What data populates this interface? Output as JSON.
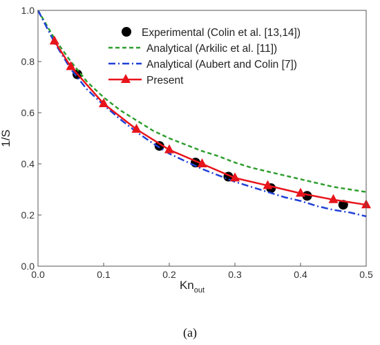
{
  "chart_data": {
    "type": "line",
    "ylabel": "1/S",
    "xlabel": "Kn",
    "xlabel_subscript": "out",
    "caption": "(a)",
    "xlim": [
      0,
      0.5
    ],
    "ylim": [
      0,
      1.0
    ],
    "x_ticks": [
      "0.0",
      "0.1",
      "0.2",
      "0.3",
      "0.4",
      "0.5"
    ],
    "y_ticks": [
      "0.0",
      "0.2",
      "0.4",
      "0.6",
      "0.8",
      "1.0"
    ],
    "grid": false,
    "legend_position": "top-right",
    "series": [
      {
        "name": "Experimental (Colin et al. [13,14])",
        "style": "markers",
        "marker": "circle",
        "color": "#000000",
        "x": [
          0.06,
          0.185,
          0.24,
          0.29,
          0.355,
          0.41,
          0.465
        ],
        "y": [
          0.75,
          0.47,
          0.405,
          0.35,
          0.305,
          0.275,
          0.24
        ]
      },
      {
        "name": "Analytical (Arkilic et al. [11])",
        "style": "dashed",
        "color": "#2e9e2e",
        "x": [
          0.0,
          0.025,
          0.05,
          0.075,
          0.1,
          0.125,
          0.15,
          0.175,
          0.2,
          0.225,
          0.25,
          0.275,
          0.3,
          0.325,
          0.35,
          0.375,
          0.4,
          0.425,
          0.45,
          0.475,
          0.5
        ],
        "y": [
          1.0,
          0.89,
          0.8,
          0.72,
          0.66,
          0.61,
          0.57,
          0.53,
          0.5,
          0.475,
          0.45,
          0.43,
          0.405,
          0.385,
          0.37,
          0.355,
          0.34,
          0.325,
          0.31,
          0.3,
          0.29
        ]
      },
      {
        "name": "Analytical (Aubert and Colin [7])",
        "style": "dash-dot",
        "color": "#1f3fd6",
        "x": [
          0.0,
          0.025,
          0.05,
          0.075,
          0.1,
          0.125,
          0.15,
          0.175,
          0.2,
          0.225,
          0.25,
          0.275,
          0.3,
          0.325,
          0.35,
          0.375,
          0.4,
          0.425,
          0.45,
          0.475,
          0.5
        ],
        "y": [
          1.0,
          0.875,
          0.77,
          0.69,
          0.63,
          0.575,
          0.525,
          0.48,
          0.44,
          0.41,
          0.38,
          0.355,
          0.33,
          0.31,
          0.29,
          0.27,
          0.255,
          0.235,
          0.22,
          0.21,
          0.195
        ]
      },
      {
        "name": "Present",
        "style": "line-markers",
        "marker": "triangle",
        "color": "#e8141b",
        "x": [
          0.025,
          0.05,
          0.1,
          0.15,
          0.2,
          0.25,
          0.3,
          0.35,
          0.4,
          0.45,
          0.5
        ],
        "y": [
          0.88,
          0.78,
          0.635,
          0.535,
          0.455,
          0.4,
          0.345,
          0.315,
          0.285,
          0.26,
          0.24
        ]
      }
    ]
  }
}
